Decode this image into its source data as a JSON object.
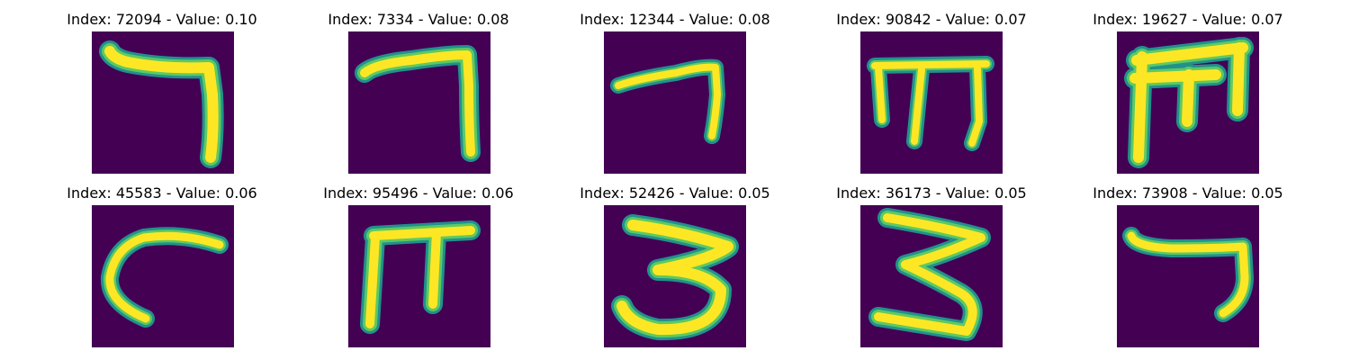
{
  "colors": {
    "background": "#440154",
    "stroke_edge": "#21918c",
    "stroke_mid": "#5ec962",
    "stroke_core": "#fde725"
  },
  "panels": [
    {
      "title": "Index: 72094 - Value: 0.10",
      "glyph": "seven-shape"
    },
    {
      "title": "Index: 7334 - Value: 0.08",
      "glyph": "seven-shape"
    },
    {
      "title": "Index: 12344 - Value: 0.08",
      "glyph": "seven-shape-small"
    },
    {
      "title": "Index: 90842 - Value: 0.07",
      "glyph": "m-shape"
    },
    {
      "title": "Index: 19627 - Value: 0.07",
      "glyph": "m-shape-bold"
    },
    {
      "title": "Index: 45583 - Value: 0.06",
      "glyph": "c-shape"
    },
    {
      "title": "Index: 95496 - Value: 0.06",
      "glyph": "pi-shape"
    },
    {
      "title": "Index: 52426 - Value: 0.05",
      "glyph": "three-shape"
    },
    {
      "title": "Index: 36173 - Value: 0.05",
      "glyph": "z-three-shape"
    },
    {
      "title": "Index: 73908 - Value: 0.05",
      "glyph": "seven-shape"
    }
  ]
}
